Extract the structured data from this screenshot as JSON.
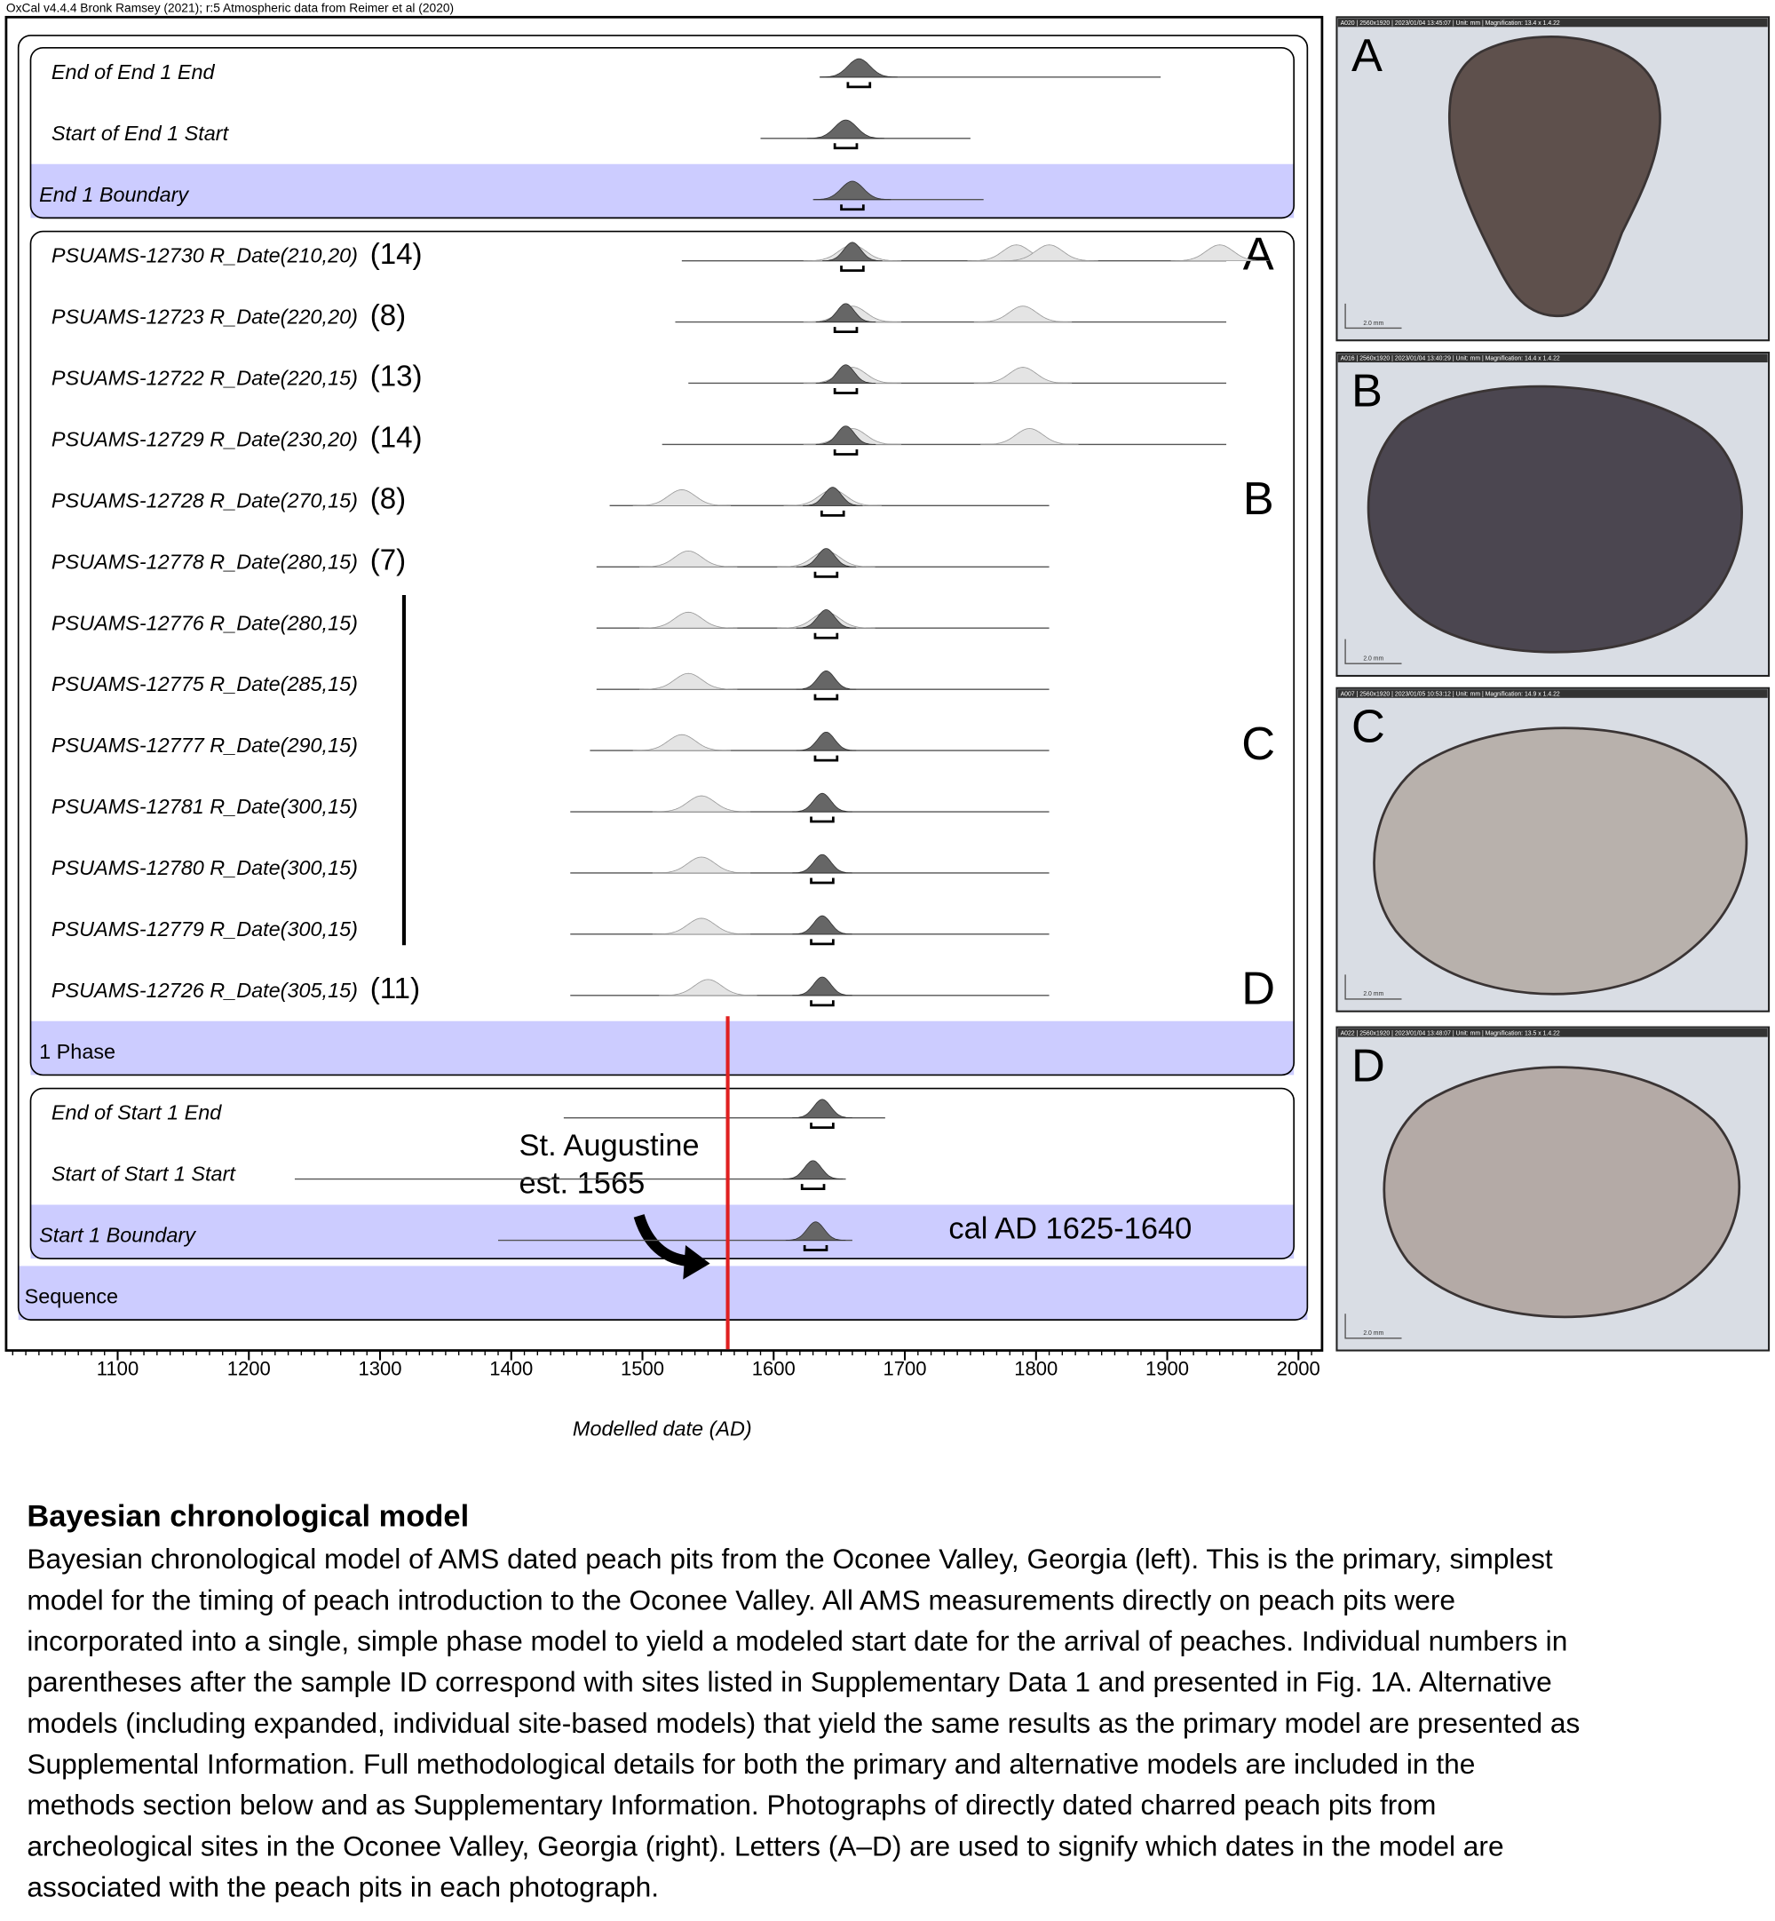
{
  "header": "OxCal v4.4.4 Bronk Ramsey (2021); r:5 Atmospheric data from Reimer et al (2020)",
  "chart_data": {
    "type": "oxcal",
    "xlabel": "Modelled date (AD)",
    "xlim": [
      1015,
      2018
    ],
    "xticks": [
      1100,
      1200,
      1300,
      1400,
      1500,
      1600,
      1700,
      1800,
      1900,
      2000
    ],
    "dark_color": "#666666",
    "light_color": "#e4e4e4",
    "band_color": "#ccccff",
    "marker_color": "#e02020",
    "rows": [
      {
        "label": "End of End 1 End",
        "span": [
          1635,
          1895
        ],
        "peak": 1665
      },
      {
        "label": "Start of End 1 Start",
        "span": [
          1590,
          1750
        ],
        "peak": 1655
      },
      {
        "label": "End 1 Boundary",
        "span": [
          1630,
          1760
        ],
        "peak": 1660
      },
      {
        "label": "PSUAMS-12730 R_Date(210,20)",
        "site": "(14)",
        "letter": "A",
        "span": [
          1530,
          1945
        ],
        "peak": 1660,
        "prior": [
          1660,
          1785,
          1810,
          1940
        ]
      },
      {
        "label": "PSUAMS-12723 R_Date(220,20)",
        "site": "(8)",
        "span": [
          1525,
          1945
        ],
        "peak": 1655,
        "prior": [
          1660,
          1790
        ]
      },
      {
        "label": "PSUAMS-12722 R_Date(220,15)",
        "site": "(13)",
        "span": [
          1535,
          1945
        ],
        "peak": 1655,
        "prior": [
          1660,
          1790
        ]
      },
      {
        "label": "PSUAMS-12729 R_Date(230,20)",
        "site": "(14)",
        "span": [
          1515,
          1945
        ],
        "peak": 1655,
        "prior": [
          1660,
          1795
        ]
      },
      {
        "label": "PSUAMS-12728 R_Date(270,15)",
        "site": "(8)",
        "letter": "B",
        "span": [
          1475,
          1810
        ],
        "peak": 1645,
        "prior": [
          1530,
          1645
        ]
      },
      {
        "label": "PSUAMS-12778 R_Date(280,15)",
        "site": "(7)",
        "span": [
          1465,
          1810
        ],
        "peak": 1640,
        "prior": [
          1535,
          1640
        ]
      },
      {
        "label": "PSUAMS-12776 R_Date(280,15)",
        "span": [
          1465,
          1810
        ],
        "peak": 1640,
        "prior": [
          1535,
          1640
        ]
      },
      {
        "label": "PSUAMS-12775 R_Date(285,15)",
        "span": [
          1465,
          1810
        ],
        "peak": 1640,
        "prior": [
          1535
        ]
      },
      {
        "label": "PSUAMS-12777 R_Date(290,15)",
        "letter": "C",
        "span": [
          1460,
          1810
        ],
        "peak": 1640,
        "prior": [
          1530
        ]
      },
      {
        "label": "PSUAMS-12781 R_Date(300,15)",
        "span": [
          1445,
          1810
        ],
        "peak": 1637,
        "prior": [
          1545
        ]
      },
      {
        "label": "PSUAMS-12780 R_Date(300,15)",
        "span": [
          1445,
          1810
        ],
        "peak": 1637,
        "prior": [
          1545
        ]
      },
      {
        "label": "PSUAMS-12779 R_Date(300,15)",
        "span": [
          1445,
          1810
        ],
        "peak": 1637,
        "prior": [
          1545
        ]
      },
      {
        "label": "PSUAMS-12726 R_Date(305,15)",
        "site": "(11)",
        "letter": "D",
        "span": [
          1445,
          1810
        ],
        "peak": 1637,
        "prior": [
          1550
        ]
      },
      {
        "label": "1 Phase"
      },
      {
        "label": "End of Start 1 End",
        "span": [
          1440,
          1685
        ],
        "peak": 1637
      },
      {
        "label": "Start of Start 1 Start",
        "span": [
          1235,
          1655
        ],
        "peak": 1630
      },
      {
        "label": "Start 1 Boundary",
        "span": [
          1390,
          1660
        ],
        "peak": 1632
      },
      {
        "label": "Sequence"
      }
    ],
    "marker": 1565,
    "annotation": [
      "St. Augustine",
      "est. 1565"
    ],
    "result": "cal AD 1625-1640"
  },
  "photos": [
    {
      "letter": "A",
      "info": "A020 | 2560x1920 | 2023/01/04 13:45:07 | Unit: mm | Magnification: 13.4 x 1.4.22",
      "scale": "2.0 mm"
    },
    {
      "letter": "B",
      "info": "A016 | 2560x1920 | 2023/01/04 13:40:29 | Unit: mm | Magnification: 14.4 x 1.4.22",
      "scale": "2.0 mm"
    },
    {
      "letter": "C",
      "info": "A007 | 2560x1920 | 2023/01/05 10:53:12 | Unit: mm | Magnification: 14.9 x 1.4.22",
      "scale": "2.0 mm"
    },
    {
      "letter": "D",
      "info": "A022 | 2560x1920 | 2023/01/04 13:48:07 | Unit: mm | Magnification: 13.5 x 1.4.22",
      "scale": "2.0 mm"
    }
  ],
  "caption": {
    "title": "Bayesian chronological model",
    "lines": [
      "Bayesian chronological model of AMS dated peach pits from the Oconee Valley, Georgia (left). This is the primary, simplest",
      "model for the timing of peach introduction to the Oconee Valley. All AMS measurements directly on peach pits were",
      "incorporated into a single, simple phase model to yield a modeled start date for the arrival of peaches. Individual numbers in",
      "parentheses after the sample ID correspond with sites listed in Supplementary Data 1 and presented in Fig. 1A. Alternative",
      "models (including expanded, individual site-based models) that yield the same results as the primary model are presented as",
      "Supplemental Information. Full methodological details for both the primary and alternative models are included in the",
      "methods section below and as Supplementary Information. Photographs of directly dated charred peach pits from",
      "archeological sites in the Oconee Valley, Georgia (right). Letters (A–D) are used to signify which dates in the model are",
      "associated with the peach pits in each photograph."
    ]
  }
}
